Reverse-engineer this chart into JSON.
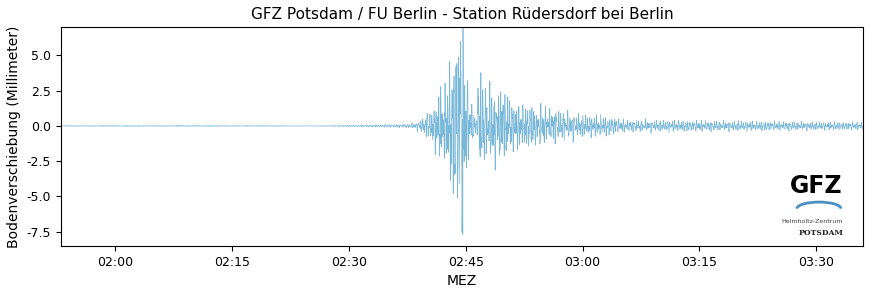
{
  "title": "GFZ Potsdam / FU Berlin - Station Rüdersdorf bei Berlin",
  "xlabel": "MEZ",
  "ylabel": "Bodenverschiebung (Millimeter)",
  "ylim": [
    -8.5,
    7.0
  ],
  "yticks": [
    -7.5,
    -5.0,
    -2.5,
    0.0,
    2.5,
    5.0
  ],
  "xtick_labels": [
    "02:00",
    "02:15",
    "02:30",
    "02:45",
    "03:00",
    "03:15",
    "03:30"
  ],
  "line_color": "#7ab8d9",
  "background_color": "#ffffff",
  "seed": 12345,
  "title_fontsize": 11,
  "axis_fontsize": 10,
  "tick_fontsize": 9
}
